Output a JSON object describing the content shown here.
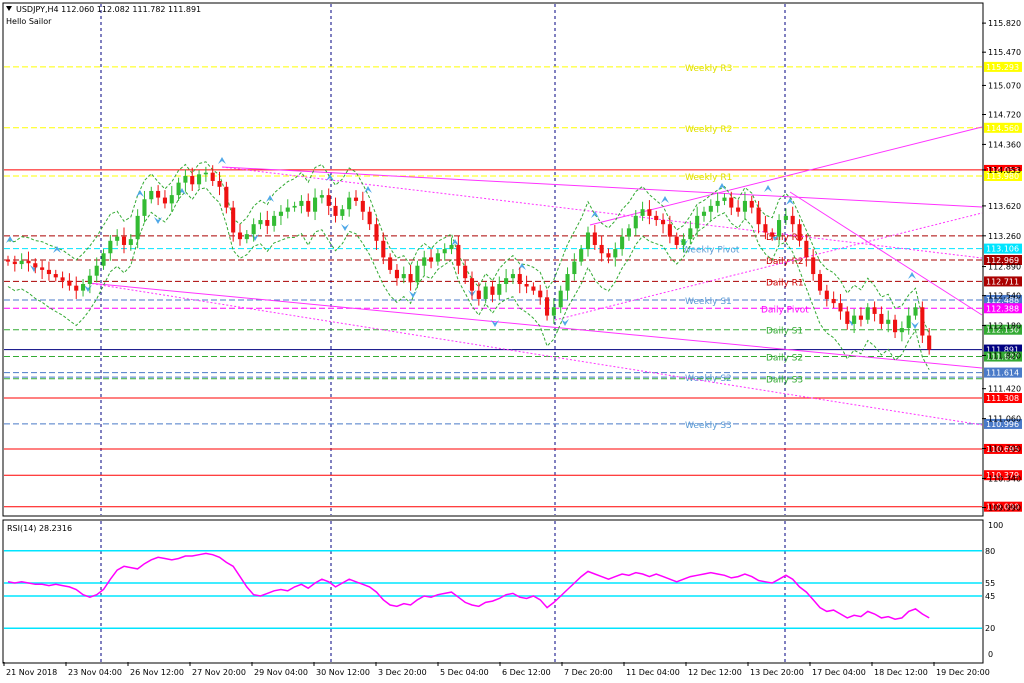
{
  "header": {
    "symbol_line": "USDJPY,H4  112.060 112.082 111.782 111.891",
    "indicator_name": "Hello Sailor"
  },
  "chart_data": [
    {
      "type": "candlestick",
      "symbol": "USDJPY",
      "timeframe": "H4",
      "ohlc_current": {
        "open": 112.06,
        "high": 112.082,
        "low": 111.782,
        "close": 111.891
      },
      "ylim": [
        109.9,
        116.05
      ],
      "y_ticks": [
        115.82,
        115.47,
        115.07,
        114.72,
        114.36,
        114.053,
        113.62,
        113.26,
        112.89,
        112.54,
        112.18,
        111.82,
        111.42,
        111.06,
        110.7,
        110.34,
        109.99
      ],
      "x_ticks": [
        "21 Nov 2018",
        "23 Nov 04:00",
        "26 Nov 12:00",
        "27 Nov 20:00",
        "29 Nov 04:00",
        "30 Nov 12:00",
        "3 Dec 20:00",
        "5 Dec 04:00",
        "6 Dec 12:00",
        "7 Dec 20:00",
        "11 Dec 04:00",
        "12 Dec 12:00",
        "13 Dec 20:00",
        "17 Dec 04:00",
        "18 Dec 12:00",
        "19 Dec 20:00"
      ],
      "closes": [
        112.95,
        112.92,
        112.96,
        112.93,
        112.88,
        112.85,
        112.8,
        112.76,
        112.72,
        112.66,
        112.6,
        112.68,
        112.78,
        112.9,
        113.05,
        113.2,
        113.25,
        113.15,
        113.22,
        113.5,
        113.7,
        113.8,
        113.72,
        113.65,
        113.75,
        113.9,
        113.98,
        113.88,
        114.0,
        114.02,
        113.92,
        113.85,
        113.6,
        113.3,
        113.22,
        113.28,
        113.4,
        113.45,
        113.38,
        113.5,
        113.55,
        113.6,
        113.62,
        113.68,
        113.55,
        113.72,
        113.75,
        113.62,
        113.5,
        113.58,
        113.72,
        113.68,
        113.55,
        113.4,
        113.2,
        113.0,
        112.85,
        112.75,
        112.8,
        112.7,
        112.9,
        113.0,
        112.95,
        113.05,
        113.1,
        113.15,
        112.9,
        112.75,
        112.6,
        112.5,
        112.65,
        112.55,
        112.68,
        112.75,
        112.8,
        112.68,
        112.65,
        112.6,
        112.52,
        112.3,
        112.4,
        112.6,
        112.8,
        112.95,
        113.1,
        113.3,
        113.15,
        113.05,
        113.0,
        113.1,
        113.25,
        113.35,
        113.5,
        113.58,
        113.5,
        113.45,
        113.4,
        113.25,
        113.15,
        113.22,
        113.35,
        113.5,
        113.55,
        113.62,
        113.68,
        113.72,
        113.6,
        113.55,
        113.68,
        113.6,
        113.4,
        113.3,
        113.25,
        113.45,
        113.5,
        113.4,
        113.2,
        113.0,
        112.8,
        112.6,
        112.5,
        112.45,
        112.35,
        112.2,
        112.3,
        112.25,
        112.4,
        112.32,
        112.2,
        112.25,
        112.1,
        112.15,
        112.3,
        112.4,
        112.06,
        111.89
      ]
    },
    {
      "type": "line",
      "title": "RSI(14) 28.2316",
      "ylim": [
        0,
        100
      ],
      "y_ticks": [
        100,
        0
      ],
      "levels": [
        80,
        55,
        45,
        20
      ],
      "values": [
        56,
        55,
        56,
        55,
        54,
        54,
        53,
        54,
        53,
        52,
        50,
        46,
        44,
        46,
        50,
        58,
        65,
        68,
        67,
        66,
        70,
        73,
        75,
        74,
        73,
        74,
        76,
        76,
        77,
        78,
        77,
        75,
        71,
        68,
        60,
        52,
        46,
        45,
        47,
        49,
        50,
        49,
        52,
        54,
        51,
        55,
        58,
        56,
        52,
        55,
        58,
        56,
        54,
        52,
        48,
        42,
        38,
        37,
        39,
        38,
        42,
        45,
        44,
        46,
        47,
        48,
        44,
        40,
        38,
        37,
        40,
        41,
        43,
        46,
        47,
        44,
        43,
        45,
        42,
        36,
        40,
        45,
        50,
        55,
        60,
        64,
        62,
        60,
        58,
        60,
        62,
        61,
        63,
        62,
        60,
        62,
        60,
        58,
        56,
        58,
        60,
        61,
        62,
        63,
        62,
        61,
        59,
        60,
        62,
        60,
        57,
        56,
        55,
        58,
        61,
        58,
        52,
        48,
        42,
        36,
        33,
        34,
        31,
        28,
        30,
        29,
        33,
        31,
        28,
        29,
        27,
        28,
        33,
        35,
        31,
        28
      ]
    }
  ],
  "levels": [
    {
      "label": "Weekly R3",
      "value": 115.293,
      "price_tag": "115.293",
      "color": "#ffff00",
      "style": "dashed",
      "label_color": "#e0e000"
    },
    {
      "label": "Weekly R2",
      "value": 114.56,
      "price_tag": "114.560",
      "color": "#ffff00",
      "style": "dashed",
      "label_color": "#e0e000"
    },
    {
      "label": "",
      "value": 114.053,
      "price_tag": "114.053",
      "color": "#ff0000",
      "style": "solid"
    },
    {
      "label": "Weekly R1",
      "value": 113.98,
      "price_tag": "113.980",
      "color": "#ffff00",
      "style": "dashed",
      "label_color": "#e0e000"
    },
    {
      "label": "Daily R3",
      "value": 113.26,
      "price_tag": "",
      "color": "#aa0000",
      "style": "dashed",
      "label_color": "#cc0000"
    },
    {
      "label": "Weekly Pivot",
      "value": 113.106,
      "price_tag": "113.106",
      "color": "#00e5ff",
      "style": "dashed",
      "label_color": "#5b9bd5"
    },
    {
      "label": "Daily R2",
      "value": 112.969,
      "price_tag": "112.969",
      "color": "#aa0000",
      "style": "dashed",
      "label_color": "#cc0000"
    },
    {
      "label": "Daily R1",
      "value": 112.711,
      "price_tag": "112.711",
      "color": "#aa0000",
      "style": "dashed",
      "label_color": "#cc0000"
    },
    {
      "label": "Weekly S1",
      "value": 112.488,
      "price_tag": "112.488",
      "color": "#4a7ac8",
      "style": "dashed",
      "label_color": "#5b9bd5"
    },
    {
      "label": "Daily Pivot",
      "value": 112.388,
      "price_tag": "112.388",
      "color": "#ff00ff",
      "style": "dashed",
      "label_color": "#ff00ff"
    },
    {
      "label": "Daily S1",
      "value": 112.13,
      "price_tag": "112.130",
      "color": "#33aa33",
      "style": "dashed",
      "label_color": "#33aa33"
    },
    {
      "label": "",
      "value": 111.891,
      "price_tag": "111.891",
      "color": "#000080",
      "style": "solid",
      "tag_color": "#000080"
    },
    {
      "label": "Daily S2",
      "value": 111.807,
      "price_tag": "111.807",
      "color": "#33aa33",
      "style": "dashed",
      "label_color": "#33aa33"
    },
    {
      "label": "",
      "value": 111.614,
      "price_tag": "111.614",
      "color": "#4a7ac8",
      "style": "dashed"
    },
    {
      "label": "Weekly S2",
      "value": 111.56,
      "price_tag": "",
      "color": "#4a7ac8",
      "style": "dashed",
      "label_color": "#5b9bd5"
    },
    {
      "label": "Daily S3",
      "value": 111.54,
      "price_tag": "",
      "color": "#33aa33",
      "style": "dashed",
      "label_color": "#33aa33"
    },
    {
      "label": "",
      "value": 111.308,
      "price_tag": "111.308",
      "color": "#ff0000",
      "style": "solid"
    },
    {
      "label": "Weekly S3",
      "value": 110.996,
      "price_tag": "110.996",
      "color": "#4a7ac8",
      "style": "dashed",
      "label_color": "#5b9bd5"
    },
    {
      "label": "",
      "value": 110.695,
      "price_tag": "110.695",
      "color": "#ff0000",
      "style": "solid"
    },
    {
      "label": "",
      "value": 110.379,
      "price_tag": "110.379",
      "color": "#ff0000",
      "style": "solid"
    },
    {
      "label": "",
      "value": 110.0,
      "price_tag": "110.000",
      "color": "#ff0000",
      "style": "solid"
    }
  ],
  "colors": {
    "up": "#33bb33",
    "down": "#ee1111",
    "trend": "#ff33ff",
    "envelope": "#33aa33",
    "fractal": "#4fa8e8",
    "rsi_line": "#ff00ff",
    "rsi_level": "#00e5ff",
    "grid": "#000080"
  }
}
